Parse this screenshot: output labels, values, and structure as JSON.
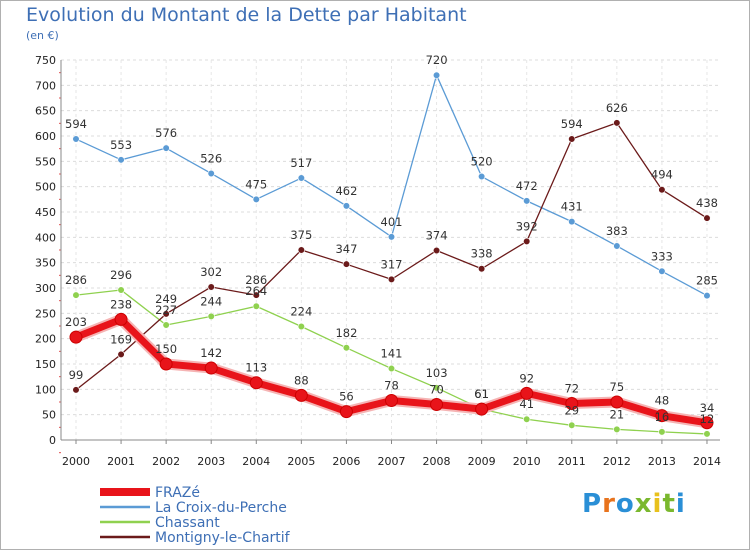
{
  "header": {
    "title": "Evolution du Montant de la Dette par Habitant",
    "unit": "(en €)"
  },
  "brand": {
    "text": "Proxiti",
    "letter_colors": [
      "#2a8fd6",
      "#e8731d",
      "#2a8fd6",
      "#7ab82e",
      "#e8c11d",
      "#7ab82e",
      "#2a8fd6"
    ]
  },
  "chart_data": {
    "type": "line",
    "x": [
      "2000",
      "2001",
      "2002",
      "2003",
      "2004",
      "2005",
      "2006",
      "2007",
      "2008",
      "2009",
      "2010",
      "2011",
      "2012",
      "2013",
      "2014"
    ],
    "ylim": [
      0,
      750
    ],
    "yticks": [
      0,
      50,
      100,
      150,
      200,
      250,
      300,
      350,
      400,
      450,
      500,
      550,
      600,
      650,
      700,
      750
    ],
    "grid": true,
    "legend_position": "bottom-left",
    "series": [
      {
        "name": "FRAZé",
        "color": "#e8141a",
        "values": [
          203,
          238,
          150,
          142,
          113,
          88,
          56,
          78,
          70,
          61,
          92,
          72,
          75,
          48,
          34
        ]
      },
      {
        "name": "La Croix-du-Perche",
        "color": "#5b9bd5",
        "values": [
          594,
          553,
          576,
          526,
          475,
          517,
          462,
          401,
          720,
          520,
          472,
          431,
          383,
          333,
          285
        ]
      },
      {
        "name": "Chassant",
        "color": "#8fd14f",
        "values": [
          286,
          296,
          227,
          244,
          264,
          224,
          182,
          141,
          103,
          61,
          41,
          29,
          21,
          16,
          12
        ]
      },
      {
        "name": "Montigny-le-Chartif",
        "color": "#6b1a1a",
        "values": [
          99,
          169,
          249,
          302,
          286,
          375,
          347,
          317,
          374,
          338,
          392,
          594,
          626,
          494,
          438
        ]
      }
    ]
  }
}
